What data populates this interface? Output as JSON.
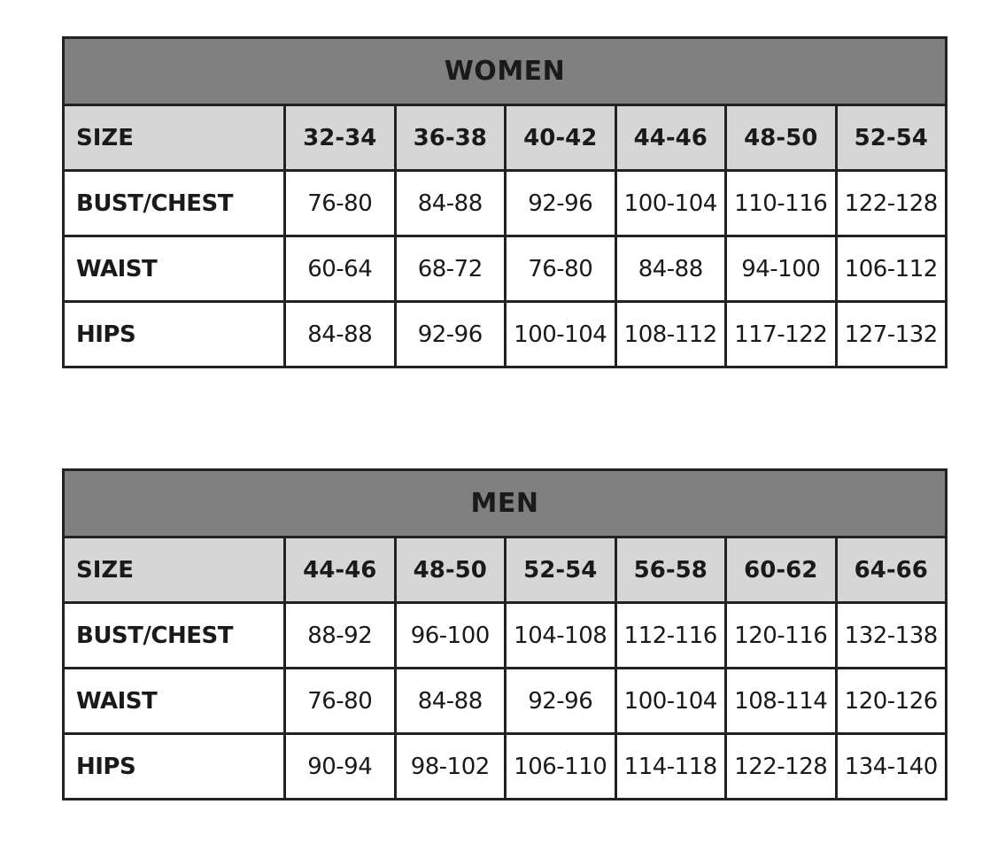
{
  "tables": [
    {
      "title": "WOMEN",
      "rows": [
        {
          "label": "SIZE",
          "values": [
            "32-34",
            "36-38",
            "40-42",
            "44-46",
            "48-50",
            "52-54"
          ]
        },
        {
          "label": "BUST/CHEST",
          "values": [
            "76-80",
            "84-88",
            "92-96",
            "100-104",
            "110-116",
            "122-128"
          ]
        },
        {
          "label": "WAIST",
          "values": [
            "60-64",
            "68-72",
            "76-80",
            "84-88",
            "94-100",
            "106-112"
          ]
        },
        {
          "label": "HIPS",
          "values": [
            "84-88",
            "92-96",
            "100-104",
            "108-112",
            "117-122",
            "127-132"
          ]
        }
      ]
    },
    {
      "title": "MEN",
      "rows": [
        {
          "label": "SIZE",
          "values": [
            "44-46",
            "48-50",
            "52-54",
            "56-58",
            "60-62",
            "64-66"
          ]
        },
        {
          "label": "BUST/CHEST",
          "values": [
            "88-92",
            "96-100",
            "104-108",
            "112-116",
            "120-116",
            "132-138"
          ]
        },
        {
          "label": "WAIST",
          "values": [
            "76-80",
            "84-88",
            "92-96",
            "100-104",
            "108-114",
            "120-126"
          ]
        },
        {
          "label": "HIPS",
          "values": [
            "90-94",
            "98-102",
            "106-110",
            "114-118",
            "122-128",
            "134-140"
          ]
        }
      ]
    }
  ],
  "colors": {
    "title_bg": "#808080",
    "size_row_bg": "#d6d6d6",
    "border": "#222222"
  }
}
